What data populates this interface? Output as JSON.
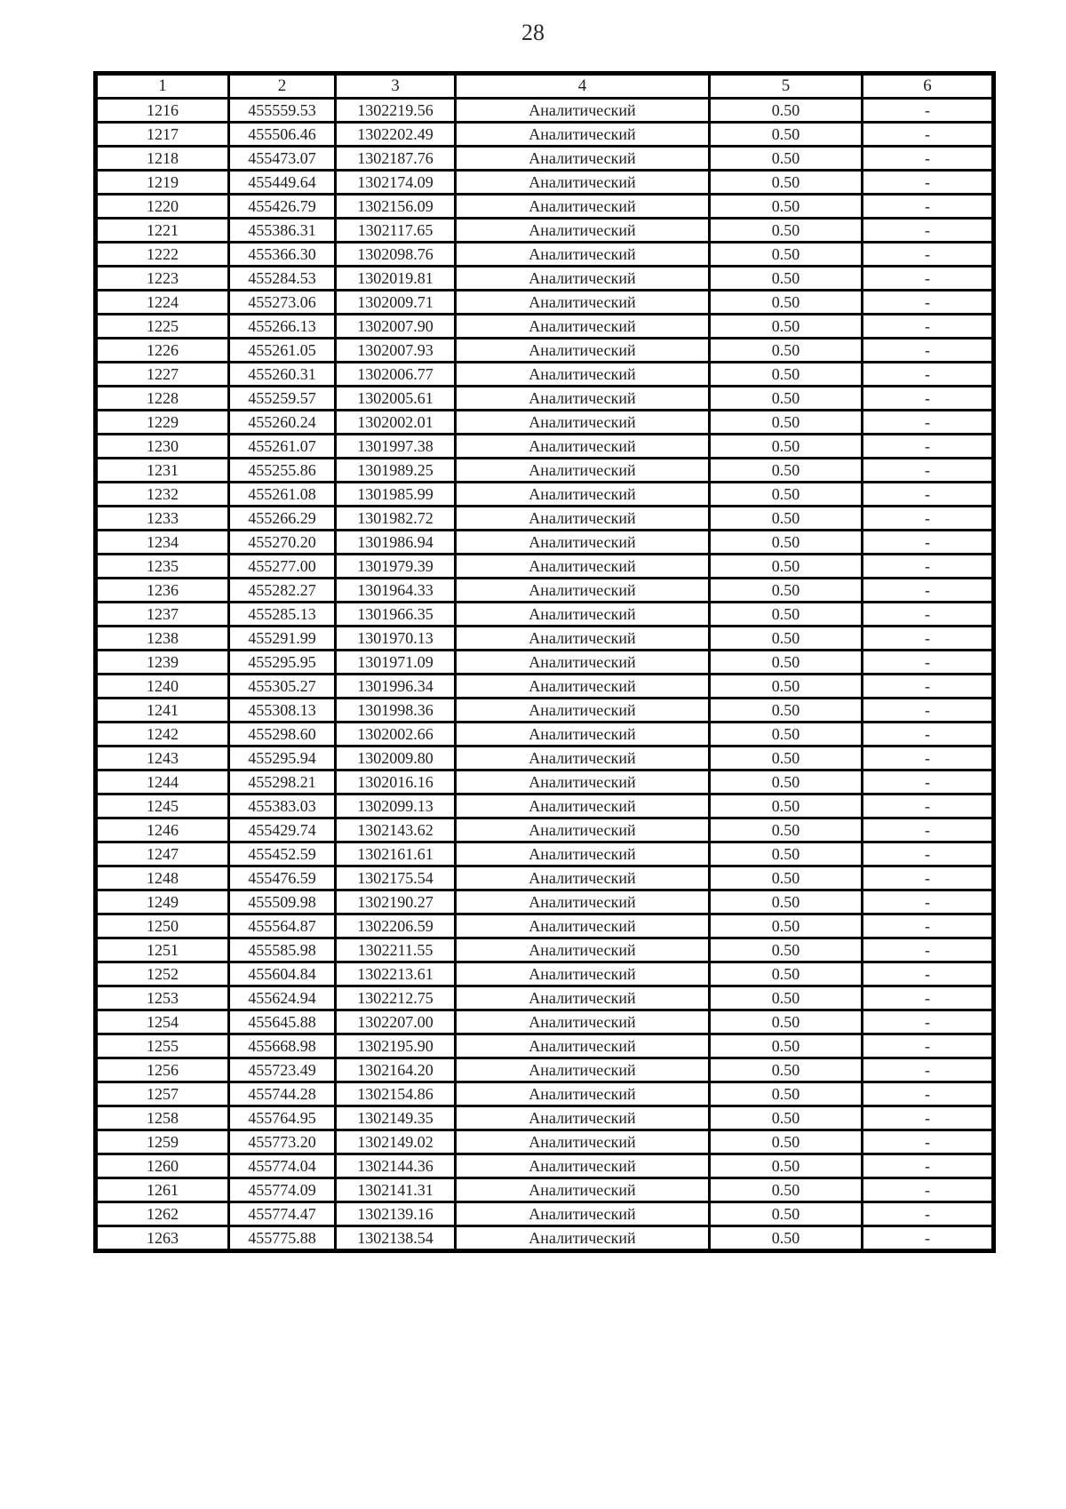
{
  "page": {
    "number": "28"
  },
  "table": {
    "headers": [
      "1",
      "2",
      "3",
      "4",
      "5",
      "6"
    ],
    "rows": [
      [
        "1216",
        "455559.53",
        "1302219.56",
        "Аналитический",
        "0.50",
        "-"
      ],
      [
        "1217",
        "455506.46",
        "1302202.49",
        "Аналитический",
        "0.50",
        "-"
      ],
      [
        "1218",
        "455473.07",
        "1302187.76",
        "Аналитический",
        "0.50",
        "-"
      ],
      [
        "1219",
        "455449.64",
        "1302174.09",
        "Аналитический",
        "0.50",
        "-"
      ],
      [
        "1220",
        "455426.79",
        "1302156.09",
        "Аналитический",
        "0.50",
        "-"
      ],
      [
        "1221",
        "455386.31",
        "1302117.65",
        "Аналитический",
        "0.50",
        "-"
      ],
      [
        "1222",
        "455366.30",
        "1302098.76",
        "Аналитический",
        "0.50",
        "-"
      ],
      [
        "1223",
        "455284.53",
        "1302019.81",
        "Аналитический",
        "0.50",
        "-"
      ],
      [
        "1224",
        "455273.06",
        "1302009.71",
        "Аналитический",
        "0.50",
        "-"
      ],
      [
        "1225",
        "455266.13",
        "1302007.90",
        "Аналитический",
        "0.50",
        "-"
      ],
      [
        "1226",
        "455261.05",
        "1302007.93",
        "Аналитический",
        "0.50",
        "-"
      ],
      [
        "1227",
        "455260.31",
        "1302006.77",
        "Аналитический",
        "0.50",
        "-"
      ],
      [
        "1228",
        "455259.57",
        "1302005.61",
        "Аналитический",
        "0.50",
        "-"
      ],
      [
        "1229",
        "455260.24",
        "1302002.01",
        "Аналитический",
        "0.50",
        "-"
      ],
      [
        "1230",
        "455261.07",
        "1301997.38",
        "Аналитический",
        "0.50",
        "-"
      ],
      [
        "1231",
        "455255.86",
        "1301989.25",
        "Аналитический",
        "0.50",
        "-"
      ],
      [
        "1232",
        "455261.08",
        "1301985.99",
        "Аналитический",
        "0.50",
        "-"
      ],
      [
        "1233",
        "455266.29",
        "1301982.72",
        "Аналитический",
        "0.50",
        "-"
      ],
      [
        "1234",
        "455270.20",
        "1301986.94",
        "Аналитический",
        "0.50",
        "-"
      ],
      [
        "1235",
        "455277.00",
        "1301979.39",
        "Аналитический",
        "0.50",
        "-"
      ],
      [
        "1236",
        "455282.27",
        "1301964.33",
        "Аналитический",
        "0.50",
        "-"
      ],
      [
        "1237",
        "455285.13",
        "1301966.35",
        "Аналитический",
        "0.50",
        "-"
      ],
      [
        "1238",
        "455291.99",
        "1301970.13",
        "Аналитический",
        "0.50",
        "-"
      ],
      [
        "1239",
        "455295.95",
        "1301971.09",
        "Аналитический",
        "0.50",
        "-"
      ],
      [
        "1240",
        "455305.27",
        "1301996.34",
        "Аналитический",
        "0.50",
        "-"
      ],
      [
        "1241",
        "455308.13",
        "1301998.36",
        "Аналитический",
        "0.50",
        "-"
      ],
      [
        "1242",
        "455298.60",
        "1302002.66",
        "Аналитический",
        "0.50",
        "-"
      ],
      [
        "1243",
        "455295.94",
        "1302009.80",
        "Аналитический",
        "0.50",
        "-"
      ],
      [
        "1244",
        "455298.21",
        "1302016.16",
        "Аналитический",
        "0.50",
        "-"
      ],
      [
        "1245",
        "455383.03",
        "1302099.13",
        "Аналитический",
        "0.50",
        "-"
      ],
      [
        "1246",
        "455429.74",
        "1302143.62",
        "Аналитический",
        "0.50",
        "-"
      ],
      [
        "1247",
        "455452.59",
        "1302161.61",
        "Аналитический",
        "0.50",
        "-"
      ],
      [
        "1248",
        "455476.59",
        "1302175.54",
        "Аналитический",
        "0.50",
        "-"
      ],
      [
        "1249",
        "455509.98",
        "1302190.27",
        "Аналитический",
        "0.50",
        "-"
      ],
      [
        "1250",
        "455564.87",
        "1302206.59",
        "Аналитический",
        "0.50",
        "-"
      ],
      [
        "1251",
        "455585.98",
        "1302211.55",
        "Аналитический",
        "0.50",
        "-"
      ],
      [
        "1252",
        "455604.84",
        "1302213.61",
        "Аналитический",
        "0.50",
        "-"
      ],
      [
        "1253",
        "455624.94",
        "1302212.75",
        "Аналитический",
        "0.50",
        "-"
      ],
      [
        "1254",
        "455645.88",
        "1302207.00",
        "Аналитический",
        "0.50",
        "-"
      ],
      [
        "1255",
        "455668.98",
        "1302195.90",
        "Аналитический",
        "0.50",
        "-"
      ],
      [
        "1256",
        "455723.49",
        "1302164.20",
        "Аналитический",
        "0.50",
        "-"
      ],
      [
        "1257",
        "455744.28",
        "1302154.86",
        "Аналитический",
        "0.50",
        "-"
      ],
      [
        "1258",
        "455764.95",
        "1302149.35",
        "Аналитический",
        "0.50",
        "-"
      ],
      [
        "1259",
        "455773.20",
        "1302149.02",
        "Аналитический",
        "0.50",
        "-"
      ],
      [
        "1260",
        "455774.04",
        "1302144.36",
        "Аналитический",
        "0.50",
        "-"
      ],
      [
        "1261",
        "455774.09",
        "1302141.31",
        "Аналитический",
        "0.50",
        "-"
      ],
      [
        "1262",
        "455774.47",
        "1302139.16",
        "Аналитический",
        "0.50",
        "-"
      ],
      [
        "1263",
        "455775.88",
        "1302138.54",
        "Аналитический",
        "0.50",
        "-"
      ]
    ]
  }
}
